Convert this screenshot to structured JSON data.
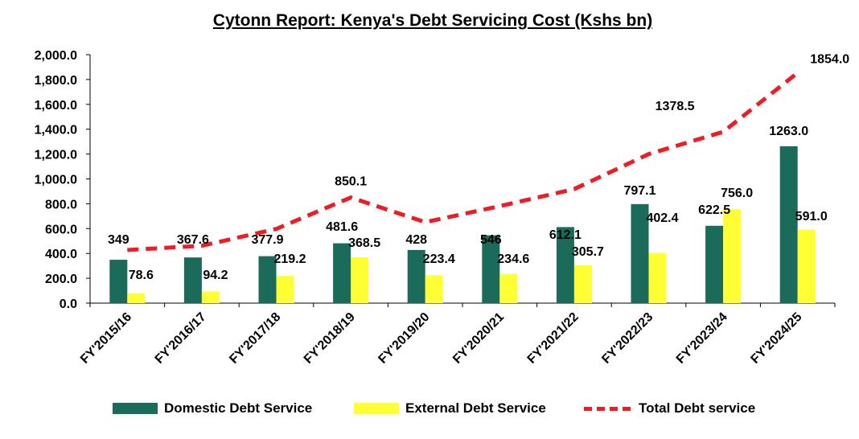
{
  "chart_data": {
    "type": "bar",
    "title": "Cytonn Report: Kenya's Debt Servicing Cost (Kshs bn)",
    "categories": [
      "FY'2015/16",
      "FY'2016/17",
      "FY'2017/18",
      "FY'2018/19",
      "FY'2019/20",
      "FY'2020/21",
      "FY'2021/22",
      "FY'2022/23",
      "FY'2023/24",
      "FY'2024/25"
    ],
    "series": [
      {
        "name": "Domestic Debt Service",
        "type": "bar",
        "color": "#1a6b5a",
        "values": [
          349,
          367.6,
          377.9,
          481.6,
          428,
          546,
          612.1,
          797.1,
          622.5,
          1263.0
        ],
        "labels": [
          "349",
          "367.6",
          "377.9",
          "481.6",
          "428",
          "546",
          "612.1",
          "797.1",
          "622.5",
          "1263.0"
        ]
      },
      {
        "name": "External Debt Service",
        "type": "bar",
        "color": "#ffff33",
        "values": [
          78.6,
          94.2,
          219.2,
          368.5,
          223.4,
          234.6,
          305.7,
          402.4,
          756.0,
          591.0
        ],
        "labels": [
          "78.6",
          "94.2",
          "219.2",
          "368.5",
          "223.4",
          "234.6",
          "305.7",
          "402.4",
          "756.0",
          "591.0"
        ]
      },
      {
        "name": "Total Debt service",
        "type": "line",
        "style": "dashed",
        "color": "#ee1c25",
        "values": [
          427.6,
          461.8,
          597.1,
          850.1,
          651.4,
          780.6,
          917.8,
          1199.5,
          1378.5,
          1854.0
        ],
        "labels": [
          "",
          "",
          "",
          "850.1",
          "",
          "",
          "",
          "",
          "1378.5",
          "1854.0"
        ]
      }
    ],
    "yticks": [
      "0.0",
      "200.0",
      "400.0",
      "600.0",
      "800.0",
      "1,000.0",
      "1,200.0",
      "1,400.0",
      "1,600.0",
      "1,800.0",
      "2,000.0"
    ],
    "ylim": [
      0,
      2000
    ],
    "grid": false,
    "legend_position": "bottom"
  }
}
